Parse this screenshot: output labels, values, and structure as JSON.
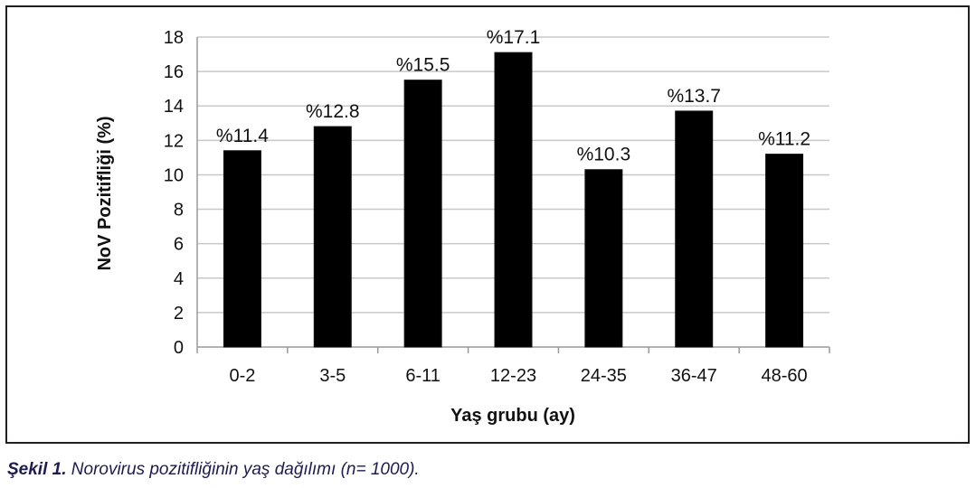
{
  "chart_data": {
    "type": "bar",
    "categories": [
      "0-2",
      "3-5",
      "6-11",
      "12-23",
      "24-35",
      "36-47",
      "48-60"
    ],
    "values": [
      11.4,
      12.8,
      15.5,
      17.1,
      10.3,
      13.7,
      11.2
    ],
    "data_labels": [
      "%11.4",
      "%12.8",
      "%15.5",
      "%17.1",
      "%10.3",
      "%13.7",
      "%11.2"
    ],
    "yticks": [
      0,
      2,
      4,
      6,
      8,
      10,
      12,
      14,
      16,
      18
    ],
    "ylim": [
      0,
      18
    ],
    "xlabel": "Yaş grubu (ay)",
    "ylabel": "NoV Pozitifliği (%)",
    "grid": true,
    "bar_color": "#000000",
    "grid_color": "#c8c8c8"
  },
  "caption": {
    "label": "Şekil 1.",
    "text": " Norovirus pozitifliğinin yaş dağılımı (n= 1000)."
  }
}
